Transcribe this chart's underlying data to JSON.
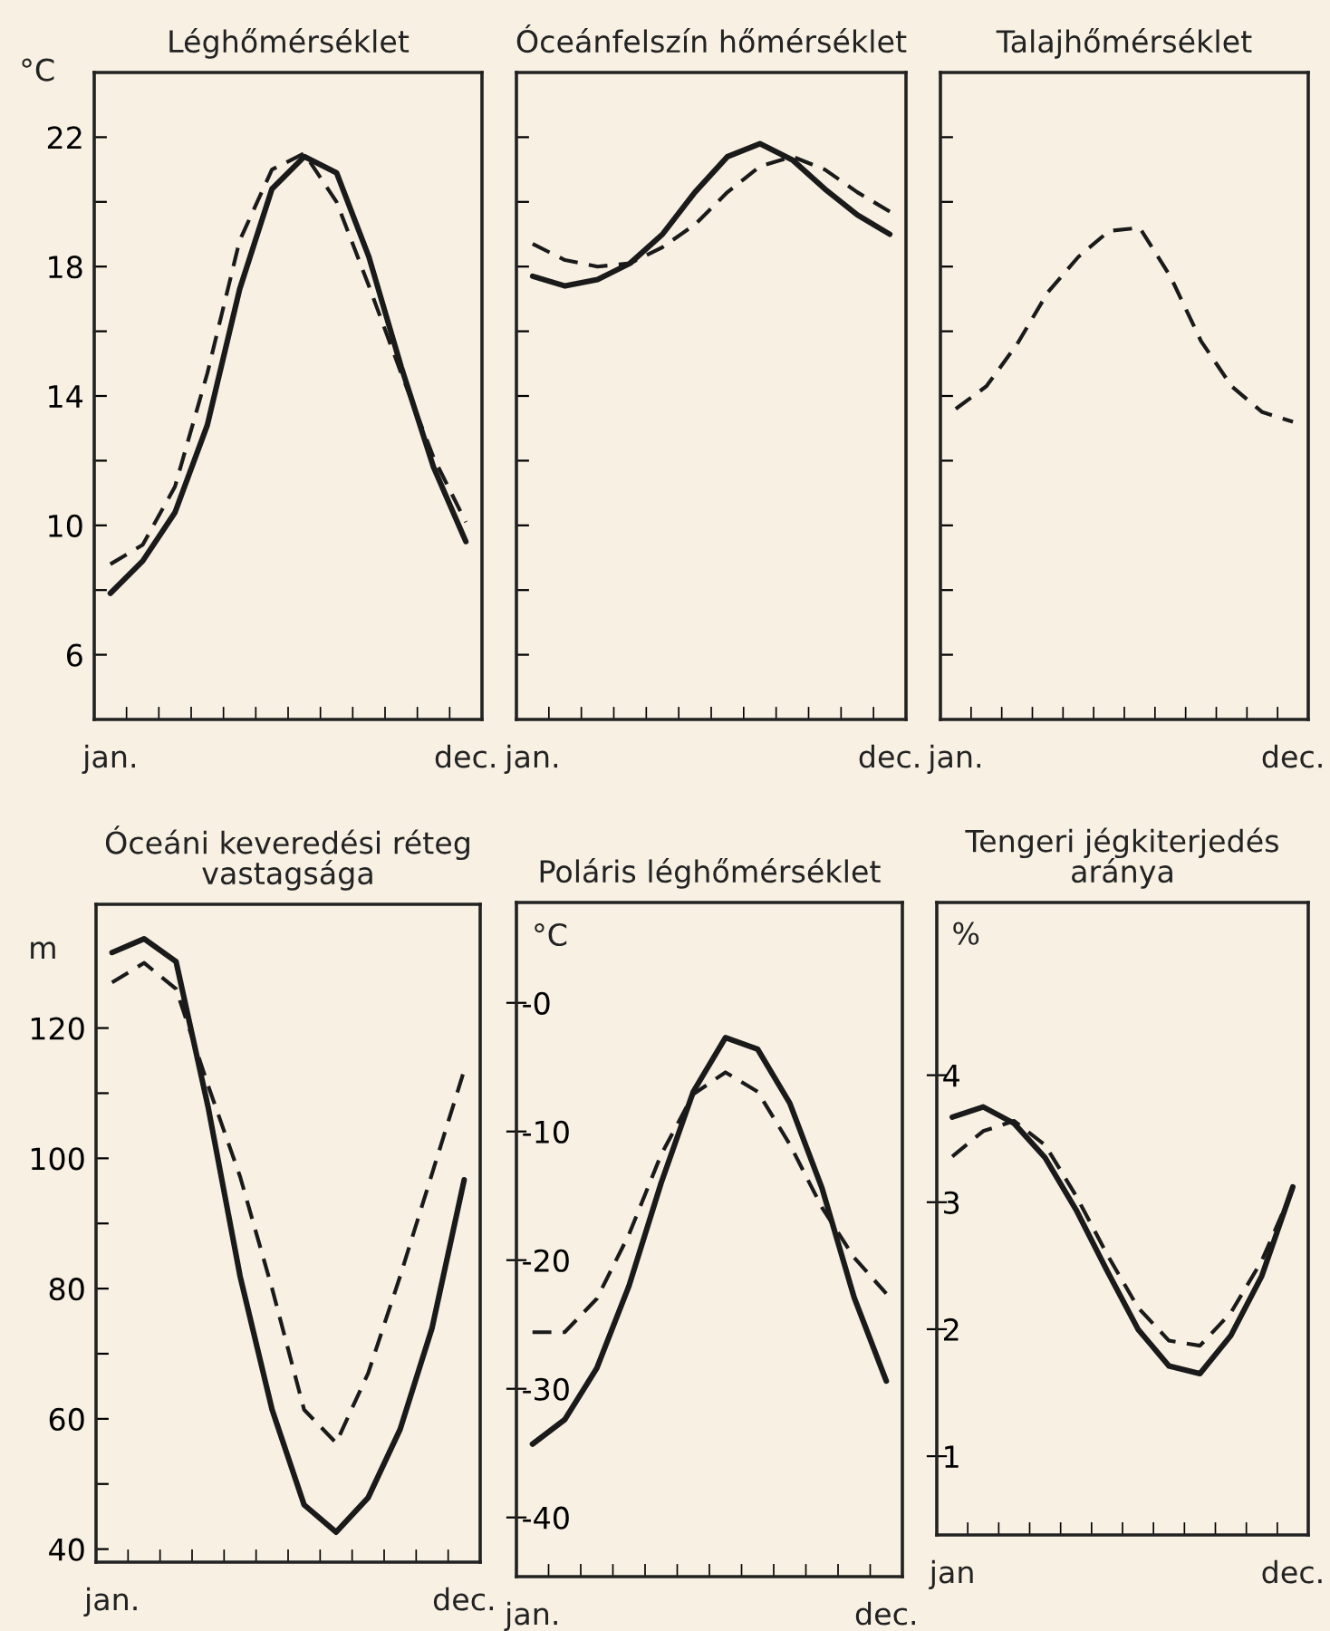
{
  "chart_data": [
    {
      "type": "line",
      "title": "Léghőmérséklet",
      "ylabel": "°C",
      "ylim": [
        4,
        24
      ],
      "categories": [
        "jan.",
        null,
        null,
        null,
        null,
        null,
        null,
        null,
        null,
        null,
        null,
        "dec."
      ],
      "yticks": [
        6,
        {
          "value": 8,
          "label": null
        },
        10,
        {
          "value": 12,
          "label": null
        },
        14,
        {
          "value": 16,
          "label": null
        },
        18,
        {
          "value": 20,
          "label": null
        },
        22
      ],
      "series": [
        {
          "color": "#1a1a1a",
          "line_style": "solid",
          "values": [
            7.9,
            8.9,
            10.4,
            13.1,
            17.3,
            20.4,
            21.4,
            20.9,
            18.3,
            14.9,
            11.8,
            9.5
          ]
        },
        {
          "color": "#1a1a1a",
          "line_style": "dashed",
          "values": [
            8.8,
            9.4,
            11.2,
            14.7,
            18.8,
            21.0,
            21.5,
            20.0,
            17.4,
            14.7,
            12.1,
            10.1
          ]
        }
      ]
    },
    {
      "type": "line",
      "title": "Óceánfelszín hőmérséklet",
      "ylim": [
        4,
        24
      ],
      "tick_labels": "x",
      "categories": [
        "jan.",
        null,
        null,
        null,
        null,
        null,
        null,
        null,
        null,
        null,
        null,
        "dec."
      ],
      "yticks": [
        {
          "value": 6,
          "label": null
        },
        {
          "value": 8,
          "label": null
        },
        {
          "value": 10,
          "label": null
        },
        {
          "value": 12,
          "label": null
        },
        {
          "value": 14,
          "label": null
        },
        {
          "value": 16,
          "label": null
        },
        {
          "value": 18,
          "label": null
        },
        {
          "value": 20,
          "label": null
        },
        {
          "value": 22,
          "label": null
        }
      ],
      "series": [
        {
          "color": "#1a1a1a",
          "line_style": "solid",
          "values": [
            17.7,
            17.4,
            17.6,
            18.1,
            19.0,
            20.3,
            21.4,
            21.8,
            21.3,
            20.4,
            19.6,
            19.0
          ]
        },
        {
          "color": "#1a1a1a",
          "line_style": "dashed",
          "values": [
            18.7,
            18.2,
            18.0,
            18.1,
            18.6,
            19.3,
            20.3,
            21.1,
            21.4,
            21.0,
            20.3,
            19.7
          ]
        }
      ]
    },
    {
      "type": "line",
      "title": "Talajhőmérséklet",
      "ylim": [
        4,
        24
      ],
      "tick_labels": "x",
      "categories": [
        "jan.",
        null,
        null,
        null,
        null,
        null,
        null,
        null,
        null,
        null,
        null,
        "dec."
      ],
      "yticks": [
        {
          "value": 6,
          "label": null
        },
        {
          "value": 8,
          "label": null
        },
        {
          "value": 10,
          "label": null
        },
        {
          "value": 12,
          "label": null
        },
        {
          "value": 14,
          "label": null
        },
        {
          "value": 16,
          "label": null
        },
        {
          "value": 18,
          "label": null
        },
        {
          "value": 20,
          "label": null
        },
        {
          "value": 22,
          "label": null
        }
      ],
      "series": [
        {
          "color": "#1a1a1a",
          "line_style": "dashed",
          "values": [
            13.6,
            14.3,
            15.6,
            17.2,
            18.3,
            19.1,
            19.2,
            17.7,
            15.7,
            14.3,
            13.5,
            13.2
          ]
        }
      ]
    },
    {
      "type": "line",
      "title": "Óceáni keveredési réteg\nvastagsága",
      "ylabel": "m",
      "ylim": [
        38,
        139
      ],
      "categories": [
        "jan.",
        null,
        null,
        null,
        null,
        null,
        null,
        null,
        null,
        null,
        null,
        "dec."
      ],
      "yticks": [
        40,
        {
          "value": 50,
          "label": null
        },
        60,
        {
          "value": 70,
          "label": null
        },
        80,
        {
          "value": 90,
          "label": null
        },
        100,
        {
          "value": 110,
          "label": null
        },
        120
      ],
      "series": [
        {
          "color": "#1a1a1a",
          "line_style": "solid",
          "values": [
            131.6,
            133.7,
            130.2,
            107.9,
            81.9,
            61.4,
            46.8,
            42.6,
            47.9,
            58.4,
            74.0,
            96.7
          ]
        },
        {
          "color": "#1a1a1a",
          "line_style": "dashed",
          "values": [
            127.0,
            130.0,
            126.0,
            111.2,
            97.2,
            80.0,
            61.4,
            56.3,
            67.0,
            81.9,
            97.7,
            113.5
          ]
        }
      ]
    },
    {
      "type": "line",
      "title": "Poláris léghőmérséklet",
      "ylabel": "°C",
      "ylim": [
        -44.6,
        7.8
      ],
      "categories": [
        "jan.",
        null,
        null,
        null,
        null,
        null,
        null,
        null,
        null,
        null,
        null,
        "dec."
      ],
      "yticks": [
        {
          "value": 0,
          "label": "-0"
        },
        -10,
        -20,
        -30,
        -40
      ],
      "series": [
        {
          "color": "#1a1a1a",
          "line_style": "solid",
          "values": [
            -34.3,
            -32.4,
            -28.4,
            -22.0,
            -14.0,
            -6.9,
            -2.7,
            -3.6,
            -7.8,
            -14.4,
            -22.9,
            -29.4
          ]
        },
        {
          "color": "#1a1a1a",
          "line_style": "dashed",
          "values": [
            -25.6,
            -25.6,
            -23.0,
            -18.0,
            -11.8,
            -7.1,
            -5.4,
            -6.9,
            -11.0,
            -15.9,
            -19.8,
            -22.6
          ]
        }
      ]
    },
    {
      "type": "line",
      "title": "Tengeri jégkiterjedés\naránya",
      "ylabel": "%",
      "ylim": [
        0.38,
        5.36
      ],
      "categories": [
        "jan",
        null,
        null,
        null,
        null,
        null,
        null,
        null,
        null,
        null,
        null,
        "dec."
      ],
      "yticks": [
        1,
        2,
        3,
        4
      ],
      "series": [
        {
          "color": "#1a1a1a",
          "line_style": "solid",
          "values": [
            3.67,
            3.75,
            3.62,
            3.35,
            2.94,
            2.46,
            2.0,
            1.71,
            1.65,
            1.95,
            2.42,
            3.12
          ]
        },
        {
          "color": "#1a1a1a",
          "line_style": "dashed",
          "values": [
            3.36,
            3.56,
            3.64,
            3.45,
            3.05,
            2.59,
            2.17,
            1.91,
            1.87,
            2.13,
            2.54,
            3.1
          ]
        }
      ]
    }
  ]
}
